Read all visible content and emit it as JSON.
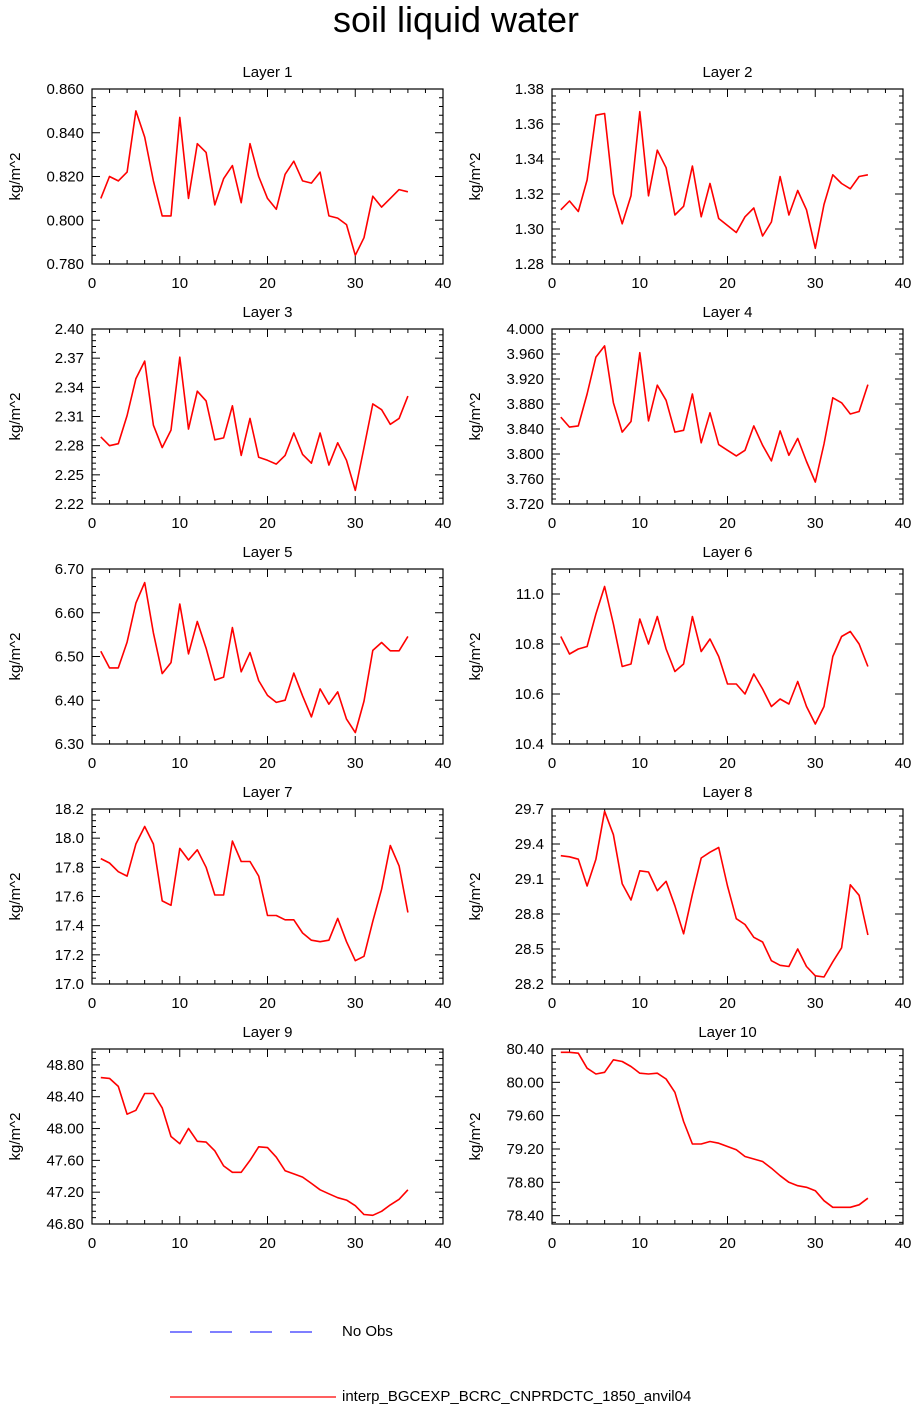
{
  "title": "soil liquid water",
  "legend": [
    {
      "label": "No Obs",
      "color": "#3333ff",
      "style": "dashed"
    },
    {
      "label": "interp_BGCEXP_BCRC_CNPRDCTC_1850_anvil04",
      "color": "#ff0000",
      "style": "solid"
    }
  ],
  "chart_data": [
    {
      "type": "line",
      "title": "Layer 1",
      "ylabel": "kg/m^2",
      "xlim": [
        0,
        40
      ],
      "ylim": [
        0.78,
        0.86
      ],
      "xticks": [
        "0",
        "10",
        "20",
        "30",
        "40"
      ],
      "yticks": [
        "0.780",
        "0.800",
        "0.820",
        "0.840",
        "0.860"
      ],
      "ytick_values": [
        0.78,
        0.8,
        0.82,
        0.84,
        0.86
      ],
      "x": [
        1,
        2,
        3,
        4,
        5,
        6,
        7,
        8,
        9,
        10,
        11,
        12,
        13,
        14,
        15,
        16,
        17,
        18,
        19,
        20,
        21,
        22,
        23,
        24,
        25,
        26,
        27,
        28,
        29,
        30,
        31,
        32,
        33,
        34,
        35,
        36
      ],
      "series": [
        {
          "name": "interp_BGCEXP_BCRC_CNPRDCTC_1850_anvil04",
          "color": "#ff0000",
          "values": [
            0.81,
            0.82,
            0.818,
            0.822,
            0.85,
            0.838,
            0.818,
            0.802,
            0.802,
            0.847,
            0.81,
            0.835,
            0.831,
            0.807,
            0.819,
            0.825,
            0.808,
            0.835,
            0.82,
            0.81,
            0.805,
            0.821,
            0.827,
            0.818,
            0.817,
            0.822,
            0.802,
            0.801,
            0.798,
            0.784,
            0.792,
            0.811,
            0.806,
            0.81,
            0.814,
            0.813
          ]
        }
      ]
    },
    {
      "type": "line",
      "title": "Layer 2",
      "ylabel": "kg/m^2",
      "xlim": [
        0,
        40
      ],
      "ylim": [
        1.28,
        1.38
      ],
      "xticks": [
        "0",
        "10",
        "20",
        "30",
        "40"
      ],
      "yticks": [
        "1.28",
        "1.30",
        "1.32",
        "1.34",
        "1.36",
        "1.38"
      ],
      "ytick_values": [
        1.28,
        1.3,
        1.32,
        1.34,
        1.36,
        1.38
      ],
      "x": [
        1,
        2,
        3,
        4,
        5,
        6,
        7,
        8,
        9,
        10,
        11,
        12,
        13,
        14,
        15,
        16,
        17,
        18,
        19,
        20,
        21,
        22,
        23,
        24,
        25,
        26,
        27,
        28,
        29,
        30,
        31,
        32,
        33,
        34,
        35,
        36
      ],
      "series": [
        {
          "name": "interp_BGCEXP_BCRC_CNPRDCTC_1850_anvil04",
          "color": "#ff0000",
          "values": [
            1.311,
            1.316,
            1.31,
            1.328,
            1.365,
            1.366,
            1.32,
            1.303,
            1.319,
            1.367,
            1.319,
            1.345,
            1.335,
            1.308,
            1.313,
            1.336,
            1.307,
            1.326,
            1.306,
            1.302,
            1.298,
            1.307,
            1.312,
            1.296,
            1.304,
            1.33,
            1.308,
            1.322,
            1.311,
            1.289,
            1.314,
            1.331,
            1.326,
            1.323,
            1.33,
            1.331
          ]
        }
      ]
    },
    {
      "type": "line",
      "title": "Layer 3",
      "ylabel": "kg/m^2",
      "xlim": [
        0,
        40
      ],
      "ylim": [
        2.22,
        2.4
      ],
      "xticks": [
        "0",
        "10",
        "20",
        "30",
        "40"
      ],
      "yticks": [
        "2.22",
        "2.25",
        "2.28",
        "2.31",
        "2.34",
        "2.37",
        "2.40"
      ],
      "ytick_values": [
        2.22,
        2.25,
        2.28,
        2.31,
        2.34,
        2.37,
        2.4
      ],
      "x": [
        1,
        2,
        3,
        4,
        5,
        6,
        7,
        8,
        9,
        10,
        11,
        12,
        13,
        14,
        15,
        16,
        17,
        18,
        19,
        20,
        21,
        22,
        23,
        24,
        25,
        26,
        27,
        28,
        29,
        30,
        31,
        32,
        33,
        34,
        35,
        36
      ],
      "series": [
        {
          "name": "interp_BGCEXP_BCRC_CNPRDCTC_1850_anvil04",
          "color": "#ff0000",
          "values": [
            2.289,
            2.28,
            2.282,
            2.311,
            2.349,
            2.367,
            2.301,
            2.278,
            2.296,
            2.371,
            2.297,
            2.336,
            2.326,
            2.286,
            2.288,
            2.321,
            2.27,
            2.308,
            2.268,
            2.265,
            2.261,
            2.27,
            2.293,
            2.271,
            2.262,
            2.293,
            2.26,
            2.283,
            2.265,
            2.234,
            2.278,
            2.323,
            2.317,
            2.302,
            2.308,
            2.331
          ]
        }
      ]
    },
    {
      "type": "line",
      "title": "Layer 4",
      "ylabel": "kg/m^2",
      "xlim": [
        0,
        40
      ],
      "ylim": [
        3.72,
        4.0
      ],
      "xticks": [
        "0",
        "10",
        "20",
        "30",
        "40"
      ],
      "yticks": [
        "3.720",
        "3.760",
        "3.800",
        "3.840",
        "3.880",
        "3.920",
        "3.960",
        "4.000"
      ],
      "ytick_values": [
        3.72,
        3.76,
        3.8,
        3.84,
        3.88,
        3.92,
        3.96,
        4.0
      ],
      "x": [
        1,
        2,
        3,
        4,
        5,
        6,
        7,
        8,
        9,
        10,
        11,
        12,
        13,
        14,
        15,
        16,
        17,
        18,
        19,
        20,
        21,
        22,
        23,
        24,
        25,
        26,
        27,
        28,
        29,
        30,
        31,
        32,
        33,
        34,
        35,
        36
      ],
      "series": [
        {
          "name": "interp_BGCEXP_BCRC_CNPRDCTC_1850_anvil04",
          "color": "#ff0000",
          "values": [
            3.859,
            3.843,
            3.845,
            3.896,
            3.955,
            3.973,
            3.882,
            3.835,
            3.852,
            3.962,
            3.853,
            3.91,
            3.886,
            3.835,
            3.838,
            3.896,
            3.818,
            3.866,
            3.815,
            3.806,
            3.797,
            3.806,
            3.845,
            3.814,
            3.789,
            3.837,
            3.798,
            3.825,
            3.788,
            3.755,
            3.816,
            3.89,
            3.882,
            3.864,
            3.868,
            3.911
          ]
        }
      ]
    },
    {
      "type": "line",
      "title": "Layer 5",
      "ylabel": "kg/m^2",
      "xlim": [
        0,
        40
      ],
      "ylim": [
        6.3,
        6.7
      ],
      "xticks": [
        "0",
        "10",
        "20",
        "30",
        "40"
      ],
      "yticks": [
        "6.30",
        "6.40",
        "6.50",
        "6.60",
        "6.70"
      ],
      "ytick_values": [
        6.3,
        6.4,
        6.5,
        6.6,
        6.7
      ],
      "x": [
        1,
        2,
        3,
        4,
        5,
        6,
        7,
        8,
        9,
        10,
        11,
        12,
        13,
        14,
        15,
        16,
        17,
        18,
        19,
        20,
        21,
        22,
        23,
        24,
        25,
        26,
        27,
        28,
        29,
        30,
        31,
        32,
        33,
        34,
        35,
        36
      ],
      "series": [
        {
          "name": "interp_BGCEXP_BCRC_CNPRDCTC_1850_anvil04",
          "color": "#ff0000",
          "values": [
            6.512,
            6.474,
            6.474,
            6.533,
            6.622,
            6.669,
            6.554,
            6.461,
            6.486,
            6.62,
            6.506,
            6.58,
            6.519,
            6.446,
            6.453,
            6.566,
            6.465,
            6.509,
            6.445,
            6.411,
            6.395,
            6.4,
            6.462,
            6.41,
            6.362,
            6.426,
            6.391,
            6.419,
            6.357,
            6.326,
            6.398,
            6.514,
            6.532,
            6.513,
            6.513,
            6.546
          ]
        }
      ]
    },
    {
      "type": "line",
      "title": "Layer 6",
      "ylabel": "kg/m^2",
      "xlim": [
        0,
        40
      ],
      "ylim": [
        10.4,
        11.1
      ],
      "xticks": [
        "0",
        "10",
        "20",
        "30",
        "40"
      ],
      "yticks": [
        "10.4",
        "10.6",
        "10.8",
        "11.0"
      ],
      "ytick_values": [
        10.4,
        10.6,
        10.8,
        11.0
      ],
      "x": [
        1,
        2,
        3,
        4,
        5,
        6,
        7,
        8,
        9,
        10,
        11,
        12,
        13,
        14,
        15,
        16,
        17,
        18,
        19,
        20,
        21,
        22,
        23,
        24,
        25,
        26,
        27,
        28,
        29,
        30,
        31,
        32,
        33,
        34,
        35,
        36
      ],
      "series": [
        {
          "name": "interp_BGCEXP_BCRC_CNPRDCTC_1850_anvil04",
          "color": "#ff0000",
          "values": [
            10.83,
            10.76,
            10.78,
            10.79,
            10.92,
            11.03,
            10.88,
            10.71,
            10.72,
            10.9,
            10.8,
            10.91,
            10.78,
            10.69,
            10.72,
            10.91,
            10.77,
            10.82,
            10.75,
            10.64,
            10.64,
            10.6,
            10.68,
            10.62,
            10.55,
            10.58,
            10.56,
            10.65,
            10.55,
            10.48,
            10.55,
            10.75,
            10.83,
            10.85,
            10.8,
            10.71
          ]
        }
      ]
    },
    {
      "type": "line",
      "title": "Layer 7",
      "ylabel": "kg/m^2",
      "xlim": [
        0,
        40
      ],
      "ylim": [
        17.0,
        18.2
      ],
      "xticks": [
        "0",
        "10",
        "20",
        "30",
        "40"
      ],
      "yticks": [
        "17.0",
        "17.2",
        "17.4",
        "17.6",
        "17.8",
        "18.0",
        "18.2"
      ],
      "ytick_values": [
        17.0,
        17.2,
        17.4,
        17.6,
        17.8,
        18.0,
        18.2
      ],
      "x": [
        1,
        2,
        3,
        4,
        5,
        6,
        7,
        8,
        9,
        10,
        11,
        12,
        13,
        14,
        15,
        16,
        17,
        18,
        19,
        20,
        21,
        22,
        23,
        24,
        25,
        26,
        27,
        28,
        29,
        30,
        31,
        32,
        33,
        34,
        35,
        36
      ],
      "series": [
        {
          "name": "interp_BGCEXP_BCRC_CNPRDCTC_1850_anvil04",
          "color": "#ff0000",
          "values": [
            17.86,
            17.83,
            17.77,
            17.74,
            17.96,
            18.08,
            17.96,
            17.57,
            17.54,
            17.93,
            17.85,
            17.92,
            17.8,
            17.61,
            17.61,
            17.98,
            17.84,
            17.84,
            17.74,
            17.47,
            17.47,
            17.44,
            17.44,
            17.35,
            17.3,
            17.29,
            17.3,
            17.45,
            17.29,
            17.16,
            17.19,
            17.43,
            17.65,
            17.95,
            17.81,
            17.49
          ]
        }
      ]
    },
    {
      "type": "line",
      "title": "Layer 8",
      "ylabel": "kg/m^2",
      "xlim": [
        0,
        40
      ],
      "ylim": [
        28.2,
        29.7
      ],
      "xticks": [
        "0",
        "10",
        "20",
        "30",
        "40"
      ],
      "yticks": [
        "28.2",
        "28.5",
        "28.8",
        "29.1",
        "29.4",
        "29.7"
      ],
      "ytick_values": [
        28.2,
        28.5,
        28.8,
        29.1,
        29.4,
        29.7
      ],
      "x": [
        1,
        2,
        3,
        4,
        5,
        6,
        7,
        8,
        9,
        10,
        11,
        12,
        13,
        14,
        15,
        16,
        17,
        18,
        19,
        20,
        21,
        22,
        23,
        24,
        25,
        26,
        27,
        28,
        29,
        30,
        31,
        32,
        33,
        34,
        35,
        36
      ],
      "series": [
        {
          "name": "interp_BGCEXP_BCRC_CNPRDCTC_1850_anvil04",
          "color": "#ff0000",
          "values": [
            29.3,
            29.29,
            29.27,
            29.04,
            29.27,
            29.68,
            29.48,
            29.06,
            28.92,
            29.17,
            29.16,
            29.0,
            29.08,
            28.87,
            28.63,
            28.97,
            29.28,
            29.33,
            29.37,
            29.04,
            28.76,
            28.71,
            28.6,
            28.56,
            28.4,
            28.36,
            28.35,
            28.5,
            28.35,
            28.27,
            28.26,
            28.39,
            28.51,
            29.05,
            28.96,
            28.62
          ]
        }
      ]
    },
    {
      "type": "line",
      "title": "Layer 9",
      "ylabel": "kg/m^2",
      "xlim": [
        0,
        40
      ],
      "ylim": [
        46.8,
        49.0
      ],
      "xticks": [
        "0",
        "10",
        "20",
        "30",
        "40"
      ],
      "yticks": [
        "46.80",
        "47.20",
        "47.60",
        "48.00",
        "48.40",
        "48.80"
      ],
      "ytick_values": [
        46.8,
        47.2,
        47.6,
        48.0,
        48.4,
        48.8
      ],
      "x": [
        1,
        2,
        3,
        4,
        5,
        6,
        7,
        8,
        9,
        10,
        11,
        12,
        13,
        14,
        15,
        16,
        17,
        18,
        19,
        20,
        21,
        22,
        23,
        24,
        25,
        26,
        27,
        28,
        29,
        30,
        31,
        32,
        33,
        34,
        35,
        36
      ],
      "series": [
        {
          "name": "interp_BGCEXP_BCRC_CNPRDCTC_1850_anvil04",
          "color": "#ff0000",
          "values": [
            48.64,
            48.63,
            48.53,
            48.18,
            48.23,
            48.44,
            48.44,
            48.26,
            47.9,
            47.81,
            48.0,
            47.84,
            47.83,
            47.72,
            47.53,
            47.45,
            47.45,
            47.6,
            47.77,
            47.76,
            47.64,
            47.47,
            47.43,
            47.39,
            47.31,
            47.23,
            47.18,
            47.13,
            47.1,
            47.03,
            46.92,
            46.91,
            46.96,
            47.04,
            47.11,
            47.23
          ]
        }
      ]
    },
    {
      "type": "line",
      "title": "Layer 10",
      "ylabel": "kg/m^2",
      "xlim": [
        0,
        40
      ],
      "ylim": [
        78.3,
        80.4
      ],
      "xticks": [
        "0",
        "10",
        "20",
        "30",
        "40"
      ],
      "yticks": [
        "78.40",
        "78.80",
        "79.20",
        "79.60",
        "80.00",
        "80.40"
      ],
      "ytick_values": [
        78.4,
        78.8,
        79.2,
        79.6,
        80.0,
        80.4
      ],
      "x": [
        1,
        2,
        3,
        4,
        5,
        6,
        7,
        8,
        9,
        10,
        11,
        12,
        13,
        14,
        15,
        16,
        17,
        18,
        19,
        20,
        21,
        22,
        23,
        24,
        25,
        26,
        27,
        28,
        29,
        30,
        31,
        32,
        33,
        34,
        35,
        36
      ],
      "series": [
        {
          "name": "interp_BGCEXP_BCRC_CNPRDCTC_1850_anvil04",
          "color": "#ff0000",
          "values": [
            80.36,
            80.36,
            80.35,
            80.17,
            80.1,
            80.12,
            80.27,
            80.25,
            80.19,
            80.11,
            80.1,
            80.11,
            80.04,
            79.88,
            79.53,
            79.26,
            79.26,
            79.29,
            79.27,
            79.23,
            79.19,
            79.11,
            79.08,
            79.05,
            78.97,
            78.88,
            78.8,
            78.76,
            78.74,
            78.7,
            78.58,
            78.5,
            78.5,
            78.5,
            78.53,
            78.61
          ]
        }
      ]
    }
  ]
}
